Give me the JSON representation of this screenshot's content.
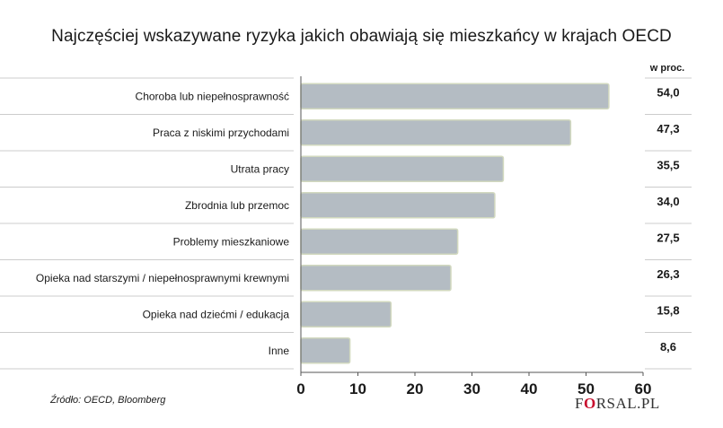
{
  "title": "Najczęściej wskazywane ryzyka jakich obawiają się mieszkańcy w krajach OECD",
  "unit_label": "w proc.",
  "source": "Źródło: OECD, Bloomberg",
  "brand": {
    "prefix": "F",
    "highlight": "O",
    "suffix": "RSAL.PL"
  },
  "colors": {
    "bar": "#b4bcc3",
    "bar_stroke": "#d2d9bf",
    "text": "#1a1a1a",
    "rule": "#cccccc"
  },
  "chart_data": {
    "type": "bar",
    "orientation": "horizontal",
    "categories": [
      "Choroba lub niepełnosprawność",
      "Praca z niskimi przychodami",
      "Utrata pracy",
      "Zbrodnia lub przemoc",
      "Problemy mieszkaniowe",
      "Opieka nad starszymi / niepełnosprawnymi krewnymi",
      "Opieka nad dziećmi / edukacja",
      "Inne"
    ],
    "values": [
      54.0,
      47.3,
      35.5,
      34.0,
      27.5,
      26.3,
      15.8,
      8.6
    ],
    "value_labels": [
      "54,0",
      "47,3",
      "35,5",
      "34,0",
      "27,5",
      "26,3",
      "15,8",
      "8,6"
    ],
    "xlim": [
      0,
      60
    ],
    "xticks": [
      0,
      10,
      20,
      30,
      40,
      50,
      60
    ],
    "grid": false
  }
}
